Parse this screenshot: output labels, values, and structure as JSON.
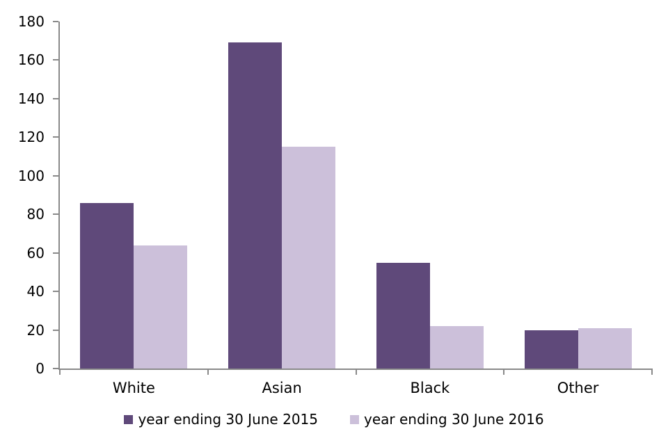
{
  "chart_data": {
    "type": "bar",
    "title": "",
    "xlabel": "",
    "ylabel": "",
    "categories": [
      "White",
      "Asian",
      "Black",
      "Other"
    ],
    "series": [
      {
        "name": "year ending 30 June 2015",
        "color": "#5F497A",
        "values": [
          86,
          169,
          55,
          20
        ]
      },
      {
        "name": "year ending 30 June 2016",
        "color": "#CCC0DA",
        "values": [
          64,
          115,
          22,
          21
        ]
      }
    ],
    "ylim": [
      0,
      180
    ],
    "ytick_step": 20,
    "yticks": [
      0,
      20,
      40,
      60,
      80,
      100,
      120,
      140,
      160,
      180
    ],
    "grid": false,
    "legend_position": "bottom",
    "axis_color": "#898989",
    "text_color": "#000000",
    "background": "#FFFFFF"
  }
}
